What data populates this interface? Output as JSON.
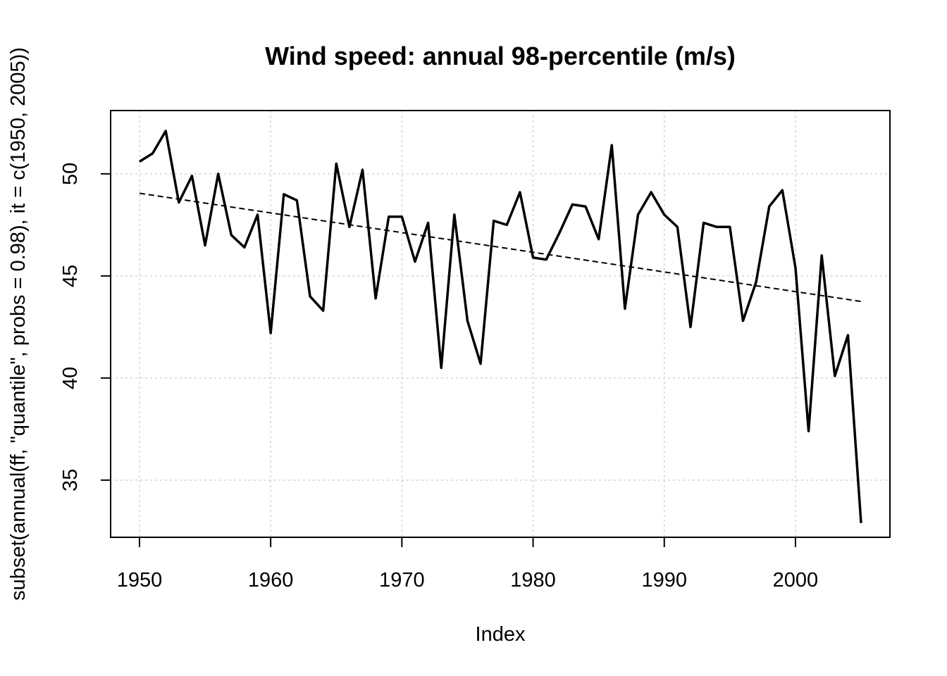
{
  "chart_data": {
    "type": "line",
    "title": "Wind speed: annual 98-percentile (m/s)",
    "xlabel": "Index",
    "ylabel": "subset(annual(ff, \"quantile\", probs = 0.98), it = c(1950, 2005))",
    "xlim": [
      1947.8,
      2007.2
    ],
    "ylim": [
      32.2,
      53.1
    ],
    "xticks": [
      1950,
      1960,
      1970,
      1980,
      1990,
      2000
    ],
    "yticks": [
      35,
      40,
      45,
      50
    ],
    "grid": true,
    "legend": "none",
    "series": [
      {
        "style": "solid",
        "x": [
          1950,
          1951,
          1952,
          1953,
          1954,
          1955,
          1956,
          1957,
          1958,
          1959,
          1960,
          1961,
          1962,
          1963,
          1964,
          1965,
          1966,
          1967,
          1968,
          1969,
          1970,
          1971,
          1972,
          1973,
          1974,
          1975,
          1976,
          1977,
          1978,
          1979,
          1980,
          1981,
          1982,
          1983,
          1984,
          1985,
          1986,
          1987,
          1988,
          1989,
          1990,
          1991,
          1992,
          1993,
          1994,
          1995,
          1996,
          1997,
          1998,
          1999,
          2000,
          2001,
          2002,
          2003,
          2004,
          2005
        ],
        "values": [
          50.6,
          51.0,
          52.1,
          48.6,
          49.9,
          46.5,
          50.0,
          47.0,
          46.4,
          48.0,
          42.2,
          49.0,
          48.7,
          44.0,
          43.3,
          50.5,
          47.4,
          50.2,
          43.9,
          47.9,
          47.9,
          45.7,
          47.6,
          40.5,
          48.0,
          42.8,
          40.7,
          47.7,
          47.5,
          49.1,
          45.9,
          45.8,
          47.1,
          48.5,
          48.4,
          46.8,
          51.4,
          43.4,
          48.0,
          49.1,
          48.0,
          47.4,
          42.5,
          47.6,
          47.4,
          47.4,
          42.8,
          44.7,
          48.4,
          49.2,
          45.4,
          37.4,
          46.0,
          40.1,
          42.1,
          32.9
        ]
      },
      {
        "style": "dashed",
        "x": [
          1950,
          2005
        ],
        "values": [
          49.05,
          43.75
        ]
      }
    ]
  }
}
